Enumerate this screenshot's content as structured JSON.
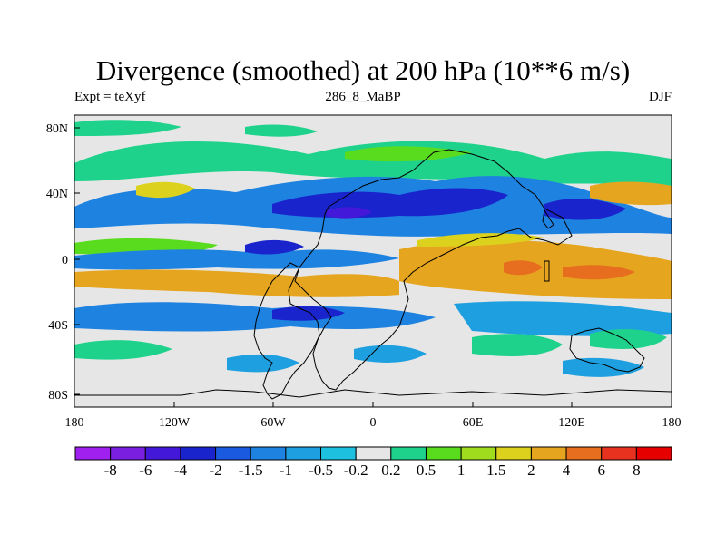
{
  "title": "Divergence (smoothed) at 200 hPa (10**6 m/s)",
  "subtitle_left": "Expt = teXyf",
  "subtitle_center": "286_8_MaBP",
  "subtitle_right": "DJF",
  "axes": {
    "x_ticks": [
      "180",
      "120W",
      "60W",
      "0",
      "60E",
      "120E",
      "180"
    ],
    "y_ticks": [
      "80N",
      "40N",
      "0",
      "40S",
      "80S"
    ]
  },
  "colorbar": {
    "labels": [
      "-8",
      "-6",
      "-4",
      "-2",
      "-1.5",
      "-1",
      "-0.5",
      "-0.2",
      "0.2",
      "0.5",
      "1",
      "1.5",
      "2",
      "4",
      "6",
      "8"
    ],
    "colors": [
      "#a020f0",
      "#7a1ee0",
      "#4418d8",
      "#1a24cc",
      "#1a5ae0",
      "#1e82e0",
      "#1ea0e0",
      "#1ec0e0",
      "#e6e6e6",
      "#1ed28c",
      "#5adc1e",
      "#a0dc1e",
      "#dcd21e",
      "#e6a51e",
      "#e66e1e",
      "#e6321e",
      "#e60000"
    ]
  }
}
